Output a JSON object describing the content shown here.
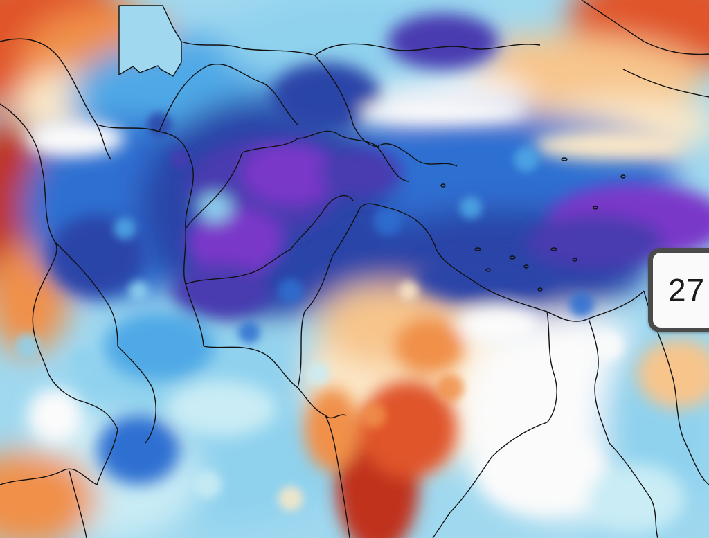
{
  "map": {
    "colors": {
      "deep_red": "#c0301f",
      "red": "#e0542a",
      "orange": "#f0904a",
      "light_orange": "#f7c58c",
      "cream": "#fbe8c8",
      "white": "#fbfbfb",
      "pale_cyan": "#c9ecf5",
      "light_blue": "#8fd2ee",
      "sky_blue": "#4fa9e6",
      "blue": "#2f6fd1",
      "deep_blue": "#2a44a8",
      "indigo": "#4a3bb0",
      "purple": "#7a39c9",
      "border_line": "#111111"
    }
  },
  "value_label": {
    "text": "27"
  }
}
